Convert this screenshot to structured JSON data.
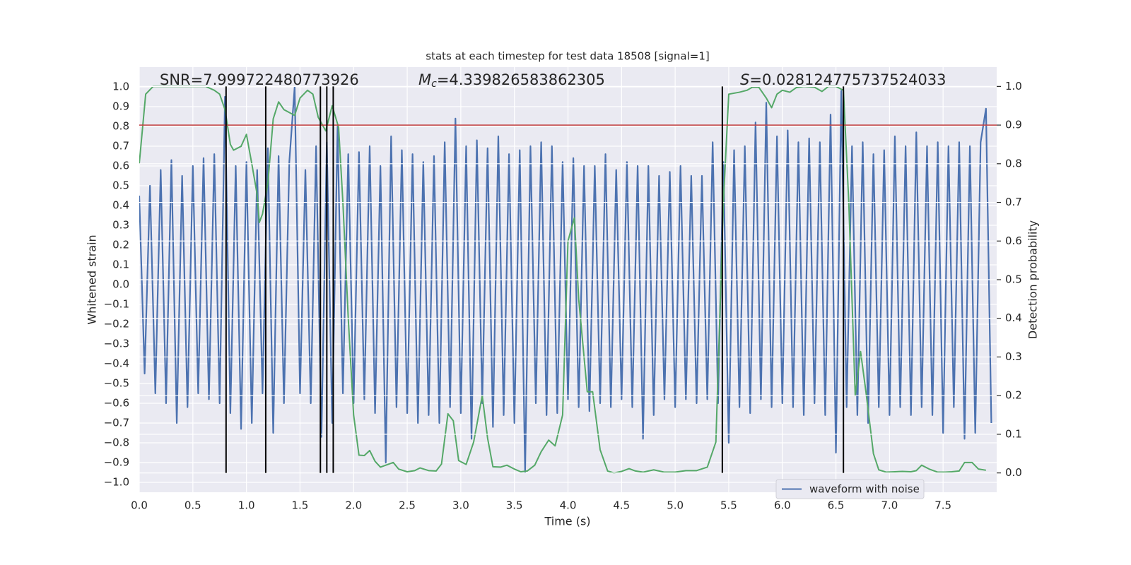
{
  "chart_data": {
    "type": "line",
    "title": "stats at each timestep for test data 18508 [signal=1]",
    "xlabel": "Time (s)",
    "ylabel": "Whitened strain",
    "y2label": "Detection probability",
    "annotations": [
      {
        "text": "SNR=7.999722480773926"
      },
      {
        "symbol": "M",
        "subscript": "c",
        "text": "=4.339826583862305"
      },
      {
        "symbol": "S",
        "text": "=0.028124775737524033"
      }
    ],
    "xlim": [
      0,
      8
    ],
    "ylim": [
      -1.05,
      1.1
    ],
    "y2lim": [
      -0.05,
      1.05
    ],
    "xticks": [
      {
        "value": 0,
        "label": "0.0"
      },
      {
        "value": 0.5,
        "label": "0.5"
      },
      {
        "value": 1,
        "label": "1.0"
      },
      {
        "value": 1.5,
        "label": "1.5"
      },
      {
        "value": 2,
        "label": "2.0"
      },
      {
        "value": 2.5,
        "label": "2.5"
      },
      {
        "value": 3,
        "label": "3.0"
      },
      {
        "value": 3.5,
        "label": "3.5"
      },
      {
        "value": 4,
        "label": "4.0"
      },
      {
        "value": 4.5,
        "label": "4.5"
      },
      {
        "value": 5,
        "label": "5.0"
      },
      {
        "value": 5.5,
        "label": "5.5"
      },
      {
        "value": 6,
        "label": "6.0"
      },
      {
        "value": 6.5,
        "label": "6.5"
      },
      {
        "value": 7,
        "label": "7.0"
      },
      {
        "value": 7.5,
        "label": "7.5"
      }
    ],
    "yticks": [
      {
        "value": -1,
        "label": "−1.0"
      },
      {
        "value": -0.9,
        "label": "−0.9"
      },
      {
        "value": -0.8,
        "label": "−0.8"
      },
      {
        "value": -0.7,
        "label": "−0.7"
      },
      {
        "value": -0.6,
        "label": "−0.6"
      },
      {
        "value": -0.5,
        "label": "−0.5"
      },
      {
        "value": -0.4,
        "label": "−0.4"
      },
      {
        "value": -0.3,
        "label": "−0.3"
      },
      {
        "value": -0.2,
        "label": "−0.2"
      },
      {
        "value": -0.1,
        "label": "−0.1"
      },
      {
        "value": 0,
        "label": "0.0"
      },
      {
        "value": 0.1,
        "label": "0.1"
      },
      {
        "value": 0.2,
        "label": "0.2"
      },
      {
        "value": 0.3,
        "label": "0.3"
      },
      {
        "value": 0.4,
        "label": "0.4"
      },
      {
        "value": 0.5,
        "label": "0.5"
      },
      {
        "value": 0.6,
        "label": "0.6"
      },
      {
        "value": 0.7,
        "label": "0.7"
      },
      {
        "value": 0.8,
        "label": "0.8"
      },
      {
        "value": 0.9,
        "label": "0.9"
      },
      {
        "value": 1,
        "label": "1.0"
      }
    ],
    "y2ticks": [
      {
        "value": 0,
        "label": "0.0"
      },
      {
        "value": 0.1,
        "label": "0.1"
      },
      {
        "value": 0.2,
        "label": "0.2"
      },
      {
        "value": 0.3,
        "label": "0.3"
      },
      {
        "value": 0.4,
        "label": "0.4"
      },
      {
        "value": 0.5,
        "label": "0.5"
      },
      {
        "value": 0.6,
        "label": "0.6"
      },
      {
        "value": 0.7,
        "label": "0.7"
      },
      {
        "value": 0.8,
        "label": "0.8"
      },
      {
        "value": 0.9,
        "label": "0.9"
      },
      {
        "value": 1,
        "label": "1.0"
      }
    ],
    "grid": true,
    "legend": "lower right",
    "series": [
      {
        "name": "waveform with noise",
        "color": "#4c72b0",
        "x": [
          0,
          0.05,
          0.1,
          0.15,
          0.2,
          0.25,
          0.3,
          0.35,
          0.4,
          0.45,
          0.5,
          0.55,
          0.6,
          0.65,
          0.7,
          0.75,
          0.8,
          0.85,
          0.9,
          0.95,
          1,
          1.05,
          1.1,
          1.15,
          1.2,
          1.25,
          1.3,
          1.35,
          1.4,
          1.45,
          1.5,
          1.55,
          1.6,
          1.65,
          1.7,
          1.75,
          1.8,
          1.85,
          1.9,
          1.95,
          2,
          2.05,
          2.1,
          2.15,
          2.2,
          2.25,
          2.3,
          2.35,
          2.4,
          2.45,
          2.5,
          2.55,
          2.6,
          2.65,
          2.7,
          2.75,
          2.8,
          2.85,
          2.9,
          2.95,
          3,
          3.05,
          3.1,
          3.15,
          3.2,
          3.25,
          3.3,
          3.35,
          3.4,
          3.45,
          3.5,
          3.55,
          3.6,
          3.65,
          3.7,
          3.75,
          3.8,
          3.85,
          3.9,
          3.95,
          4,
          4.05,
          4.1,
          4.15,
          4.2,
          4.25,
          4.3,
          4.35,
          4.4,
          4.45,
          4.5,
          4.55,
          4.6,
          4.65,
          4.7,
          4.75,
          4.8,
          4.85,
          4.9,
          4.95,
          5,
          5.05,
          5.1,
          5.15,
          5.2,
          5.25,
          5.3,
          5.35,
          5.4,
          5.45,
          5.5,
          5.55,
          5.6,
          5.65,
          5.7,
          5.75,
          5.8,
          5.85,
          5.9,
          5.95,
          6,
          6.05,
          6.1,
          6.15,
          6.2,
          6.25,
          6.3,
          6.35,
          6.4,
          6.45,
          6.5,
          6.55,
          6.6,
          6.65,
          6.7,
          6.75,
          6.8,
          6.85,
          6.9,
          6.95,
          7,
          7.05,
          7.1,
          7.15,
          7.2,
          7.25,
          7.3,
          7.35,
          7.4,
          7.45,
          7.5,
          7.55,
          7.6,
          7.65,
          7.7,
          7.75,
          7.8,
          7.85,
          7.9,
          7.95
        ],
        "values": [
          0.45,
          -0.45,
          0.5,
          -0.55,
          0.58,
          -0.6,
          0.63,
          -0.7,
          0.55,
          -0.62,
          0.6,
          -0.55,
          0.64,
          -0.58,
          0.66,
          -0.6,
          0.95,
          -0.65,
          0.6,
          -0.73,
          0.62,
          -0.7,
          0.58,
          -0.55,
          0.69,
          -0.75,
          0.65,
          -0.6,
          0.62,
          1.0,
          -0.55,
          0.58,
          -0.6,
          0.7,
          -0.77,
          0.72,
          -0.7,
          0.8,
          -0.55,
          0.66,
          -0.6,
          0.67,
          -0.58,
          0.7,
          -0.65,
          0.6,
          -0.9,
          0.75,
          -0.62,
          0.68,
          -0.65,
          0.66,
          -0.7,
          0.62,
          -0.66,
          0.65,
          -0.7,
          0.72,
          -0.62,
          0.84,
          -0.65,
          0.7,
          -0.78,
          0.73,
          -0.6,
          0.69,
          -0.72,
          0.75,
          -0.66,
          0.66,
          -0.7,
          0.68,
          -0.95,
          0.7,
          -0.6,
          0.72,
          -0.66,
          0.7,
          -0.65,
          0.62,
          -0.58,
          0.64,
          -0.62,
          0.6,
          -0.64,
          0.6,
          -0.6,
          0.66,
          -0.62,
          0.58,
          -0.58,
          0.62,
          -0.62,
          0.6,
          -0.78,
          0.6,
          -0.66,
          0.55,
          -0.58,
          0.57,
          -0.62,
          0.6,
          -0.58,
          0.55,
          -0.6,
          0.55,
          -0.58,
          0.72,
          -0.6,
          0.62,
          -0.8,
          0.68,
          -0.62,
          0.7,
          -0.65,
          0.82,
          -0.58,
          0.92,
          -0.62,
          0.75,
          -0.6,
          0.78,
          -0.62,
          0.72,
          -0.66,
          0.74,
          -0.6,
          0.72,
          -0.66,
          0.86,
          -0.85,
          0.98,
          -0.62,
          0.7,
          -0.66,
          0.72,
          -0.7,
          0.66,
          -0.62,
          0.68,
          -0.66,
          0.75,
          -0.62,
          0.7,
          -0.66,
          0.77,
          -0.62,
          0.7,
          -0.66,
          0.72,
          -0.75,
          0.7,
          -0.62,
          0.72,
          -0.78,
          0.7,
          -0.75,
          0.72,
          0.89,
          -0.7
        ]
      },
      {
        "color": "#55a868",
        "axis": "y2",
        "x": [
          0,
          0.06,
          0.13,
          0.3,
          0.5,
          0.62,
          0.7,
          0.75,
          0.8,
          0.85,
          0.88,
          0.95,
          1,
          1.05,
          1.1,
          1.12,
          1.15,
          1.2,
          1.25,
          1.3,
          1.35,
          1.45,
          1.5,
          1.57,
          1.62,
          1.67,
          1.71,
          1.74,
          1.8,
          1.86,
          1.9,
          1.95,
          2,
          2.05,
          2.1,
          2.15,
          2.2,
          2.25,
          2.3,
          2.37,
          2.42,
          2.5,
          2.57,
          2.62,
          2.7,
          2.77,
          2.82,
          2.88,
          2.93,
          2.98,
          3.05,
          3.12,
          3.2,
          3.25,
          3.3,
          3.37,
          3.43,
          3.5,
          3.56,
          3.62,
          3.69,
          3.75,
          3.82,
          3.88,
          3.95,
          4,
          4.06,
          4.1,
          4.18,
          4.23,
          4.3,
          4.37,
          4.43,
          4.5,
          4.57,
          4.63,
          4.7,
          4.8,
          4.9,
          5,
          5.1,
          5.2,
          5.3,
          5.38,
          5.45,
          5.5,
          5.6,
          5.67,
          5.72,
          5.78,
          5.85,
          5.9,
          5.95,
          6,
          6.07,
          6.13,
          6.2,
          6.3,
          6.37,
          6.43,
          6.5,
          6.57,
          6.62,
          6.68,
          6.73,
          6.78,
          6.85,
          6.9,
          6.97,
          7.05,
          7.12,
          7.2,
          7.25,
          7.3,
          7.37,
          7.45,
          7.52,
          7.58,
          7.65,
          7.7,
          7.77,
          7.83,
          7.9
        ],
        "values": [
          0.8,
          0.98,
          1.0,
          1.0,
          1.0,
          1.0,
          0.99,
          0.98,
          0.94,
          0.85,
          0.835,
          0.845,
          0.876,
          0.8,
          0.72,
          0.648,
          0.67,
          0.75,
          0.916,
          0.96,
          0.94,
          0.925,
          0.97,
          0.99,
          0.98,
          0.92,
          0.9,
          0.885,
          0.95,
          0.894,
          0.7,
          0.4,
          0.15,
          0.046,
          0.045,
          0.058,
          0.03,
          0.015,
          0.02,
          0.027,
          0.01,
          0.003,
          0.006,
          0.013,
          0.006,
          0.005,
          0.023,
          0.153,
          0.135,
          0.032,
          0.022,
          0.08,
          0.2,
          0.09,
          0.016,
          0.015,
          0.02,
          0.01,
          0.003,
          0.005,
          0.02,
          0.055,
          0.085,
          0.07,
          0.15,
          0.6,
          0.66,
          0.45,
          0.21,
          0.21,
          0.06,
          0.005,
          0.0,
          0.004,
          0.011,
          0.005,
          0.002,
          0.008,
          0.002,
          0.002,
          0.006,
          0.006,
          0.015,
          0.08,
          0.7,
          0.98,
          0.985,
          0.99,
          0.998,
          0.998,
          0.97,
          0.945,
          0.98,
          0.99,
          0.985,
          0.997,
          1.0,
          0.998,
          0.987,
          1.0,
          1.0,
          0.99,
          0.7,
          0.2,
          0.314,
          0.21,
          0.05,
          0.008,
          0.002,
          0.003,
          0.004,
          0.003,
          0.006,
          0.02,
          0.01,
          0.002,
          0.002,
          0.003,
          0.005,
          0.027,
          0.027,
          0.01,
          0.007
        ]
      }
    ],
    "threshold": {
      "value": 0.9,
      "axis": "y2",
      "color": "#c03d3e"
    },
    "vlines": {
      "x": [
        0.81,
        1.18,
        1.69,
        1.75,
        1.81,
        5.44,
        6.57
      ],
      "y2": [
        0,
        1
      ],
      "color": "#000000"
    }
  }
}
